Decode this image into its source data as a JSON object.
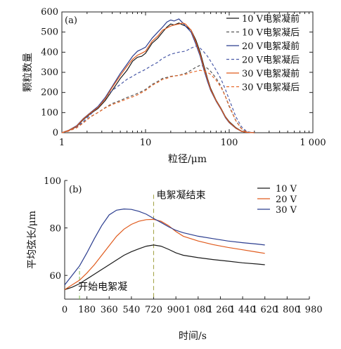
{
  "chart_data": [
    {
      "type": "line",
      "panel_label": "(a)",
      "xlabel": "粒径/μm",
      "ylabel": "颗粒数量",
      "xscale": "log",
      "xlim": [
        1,
        1000
      ],
      "ylim": [
        0,
        600
      ],
      "xtick_values": [
        1,
        10,
        100,
        1000
      ],
      "xtick_labels": [
        "1",
        "10",
        "100",
        "1 000"
      ],
      "ytick_values": [
        0,
        100,
        200,
        300,
        400,
        500,
        600
      ],
      "ytick_labels": [
        "0",
        "100",
        "200",
        "300",
        "400",
        "500",
        "600"
      ],
      "legend_position": "top-right",
      "grid": false,
      "series": [
        {
          "name": "10 V电絮凝前",
          "color": "#1a1a1a",
          "dash": "solid",
          "x": [
            1,
            1.2,
            1.5,
            1.8,
            2.2,
            2.7,
            3.3,
            4,
            5,
            6,
            7,
            8,
            9,
            10,
            12,
            14,
            16,
            18,
            20,
            22,
            25,
            28,
            30,
            35,
            40,
            45,
            50,
            55,
            60,
            70,
            80,
            90,
            100,
            120,
            140,
            160,
            180,
            200
          ],
          "y": [
            0,
            10,
            30,
            65,
            95,
            120,
            160,
            210,
            270,
            310,
            355,
            375,
            380,
            395,
            445,
            470,
            500,
            525,
            540,
            535,
            545,
            535,
            530,
            510,
            460,
            400,
            330,
            270,
            220,
            160,
            120,
            80,
            55,
            25,
            8,
            3,
            1,
            0
          ]
        },
        {
          "name": "10 V电絮凝后",
          "color": "#555555",
          "dash": "dashed",
          "x": [
            1,
            1.2,
            1.5,
            1.8,
            2.2,
            2.7,
            3.3,
            4,
            5,
            6,
            7,
            8,
            9,
            10,
            12,
            14,
            16,
            18,
            20,
            25,
            30,
            35,
            40,
            45,
            50,
            55,
            60,
            70,
            80,
            90,
            100,
            120,
            140,
            160,
            180,
            200
          ],
          "y": [
            0,
            8,
            25,
            50,
            80,
            100,
            125,
            145,
            160,
            175,
            185,
            195,
            205,
            215,
            240,
            255,
            270,
            275,
            280,
            285,
            295,
            310,
            325,
            335,
            330,
            320,
            305,
            270,
            230,
            180,
            130,
            60,
            20,
            5,
            1,
            0
          ]
        },
        {
          "name": "20 V电絮凝前",
          "color": "#2b3d8f",
          "dash": "solid",
          "x": [
            1,
            1.2,
            1.5,
            1.8,
            2.2,
            2.7,
            3.3,
            4,
            5,
            6,
            7,
            8,
            9,
            10,
            12,
            14,
            16,
            18,
            20,
            22,
            25,
            28,
            30,
            35,
            40,
            45,
            50,
            55,
            60,
            70,
            80,
            90,
            100,
            120,
            140,
            160,
            180,
            200
          ],
          "y": [
            0,
            12,
            35,
            70,
            100,
            130,
            175,
            230,
            295,
            340,
            380,
            405,
            415,
            425,
            470,
            500,
            525,
            550,
            560,
            555,
            565,
            545,
            530,
            500,
            440,
            380,
            310,
            255,
            210,
            155,
            115,
            75,
            50,
            22,
            7,
            2,
            1,
            0
          ]
        },
        {
          "name": "20 V电絮凝后",
          "color": "#4a5aa8",
          "dash": "dashed",
          "x": [
            1,
            1.2,
            1.5,
            1.8,
            2.2,
            2.7,
            3.3,
            4,
            5,
            6,
            7,
            8,
            9,
            10,
            12,
            14,
            16,
            18,
            20,
            25,
            30,
            35,
            40,
            45,
            50,
            55,
            60,
            70,
            80,
            90,
            100,
            120,
            140,
            160,
            180,
            200
          ],
          "y": [
            0,
            8,
            28,
            55,
            90,
            130,
            175,
            210,
            240,
            265,
            280,
            295,
            305,
            315,
            335,
            350,
            370,
            380,
            390,
            400,
            405,
            420,
            430,
            420,
            400,
            380,
            355,
            310,
            265,
            215,
            165,
            80,
            30,
            8,
            2,
            0
          ]
        },
        {
          "name": "30 V电絮凝前",
          "color": "#e05a1c",
          "dash": "solid",
          "x": [
            1,
            1.2,
            1.5,
            1.8,
            2.2,
            2.7,
            3.3,
            4,
            5,
            6,
            7,
            8,
            9,
            10,
            12,
            14,
            16,
            18,
            20,
            22,
            25,
            28,
            30,
            35,
            40,
            45,
            50,
            55,
            60,
            70,
            80,
            90,
            100,
            120,
            140,
            160,
            180,
            200
          ],
          "y": [
            0,
            11,
            32,
            68,
            98,
            125,
            168,
            225,
            285,
            330,
            365,
            385,
            395,
            405,
            455,
            480,
            510,
            520,
            530,
            535,
            540,
            545,
            540,
            510,
            450,
            390,
            320,
            265,
            215,
            158,
            118,
            78,
            52,
            23,
            7,
            2,
            1,
            0
          ]
        },
        {
          "name": "30 V电絮凝后",
          "color": "#e86a2c",
          "dash": "dashed",
          "x": [
            1,
            1.2,
            1.5,
            1.8,
            2.2,
            2.7,
            3.3,
            4,
            5,
            6,
            7,
            8,
            9,
            10,
            12,
            14,
            16,
            18,
            20,
            25,
            30,
            35,
            40,
            45,
            50,
            55,
            60,
            70,
            80,
            90,
            100,
            120,
            140,
            160,
            180,
            200
          ],
          "y": [
            0,
            8,
            24,
            48,
            78,
            100,
            123,
            140,
            155,
            168,
            178,
            188,
            200,
            210,
            235,
            250,
            265,
            270,
            278,
            285,
            290,
            300,
            305,
            310,
            305,
            300,
            290,
            260,
            225,
            180,
            135,
            60,
            20,
            5,
            1,
            0
          ]
        }
      ]
    },
    {
      "type": "line",
      "panel_label": "(b)",
      "xlabel": "时间/s",
      "ylabel": "平均弦长/μm",
      "xlim": [
        0,
        1980
      ],
      "ylim": [
        50,
        100
      ],
      "xtick_values": [
        0,
        180,
        360,
        540,
        720,
        900,
        1080,
        1260,
        1440,
        1620,
        1800,
        1980
      ],
      "xtick_labels": [
        "0",
        "180",
        "360",
        "540",
        "720",
        "900",
        "1 080",
        "1 260",
        "1 440",
        "1 620",
        "1 800",
        "1 980"
      ],
      "ytick_values": [
        60,
        80,
        100
      ],
      "ytick_labels": [
        "60",
        "80",
        "100"
      ],
      "legend_position": "top-right",
      "grid": false,
      "annotations": [
        {
          "text": "开始电絮凝",
          "x": 120,
          "line_color": "#7ab848"
        },
        {
          "text": "电絮凝结束",
          "x": 720,
          "line_color": "#a0a040"
        }
      ],
      "series": [
        {
          "name": "10 V",
          "color": "#1a1a1a",
          "x": [
            0,
            60,
            120,
            180,
            240,
            300,
            360,
            420,
            480,
            540,
            600,
            660,
            720,
            780,
            840,
            900,
            960,
            1080,
            1200,
            1320,
            1440,
            1560,
            1620
          ],
          "y": [
            54,
            55,
            56.5,
            58.5,
            60.5,
            62.5,
            64.5,
            66.5,
            68.5,
            70,
            71.2,
            72.3,
            72.8,
            72.3,
            71,
            69.5,
            68.5,
            67.5,
            66.7,
            66,
            65.3,
            64.8,
            64.5
          ]
        },
        {
          "name": "20 V",
          "color": "#e05a1c",
          "x": [
            0,
            60,
            120,
            180,
            240,
            300,
            360,
            420,
            480,
            540,
            600,
            660,
            720,
            780,
            840,
            900,
            960,
            1080,
            1200,
            1320,
            1440,
            1560,
            1620
          ],
          "y": [
            54,
            56,
            58,
            61,
            64.5,
            68.5,
            72.5,
            76.5,
            79.5,
            81.5,
            82.8,
            83.5,
            83.6,
            82.8,
            81,
            78.5,
            76.5,
            74.5,
            73,
            71.8,
            70.8,
            69.8,
            69.3
          ]
        },
        {
          "name": "30 V",
          "color": "#2b3d8f",
          "x": [
            0,
            60,
            120,
            180,
            240,
            300,
            360,
            420,
            480,
            540,
            600,
            660,
            720,
            780,
            840,
            900,
            960,
            1080,
            1200,
            1320,
            1440,
            1560,
            1620
          ],
          "y": [
            56,
            60,
            64,
            69.5,
            75.5,
            81,
            85.5,
            87.5,
            88,
            87.8,
            87,
            85.8,
            84,
            82.3,
            80.5,
            79,
            78,
            76.5,
            75.5,
            74.5,
            73.8,
            73.2,
            72.8
          ]
        }
      ]
    }
  ]
}
